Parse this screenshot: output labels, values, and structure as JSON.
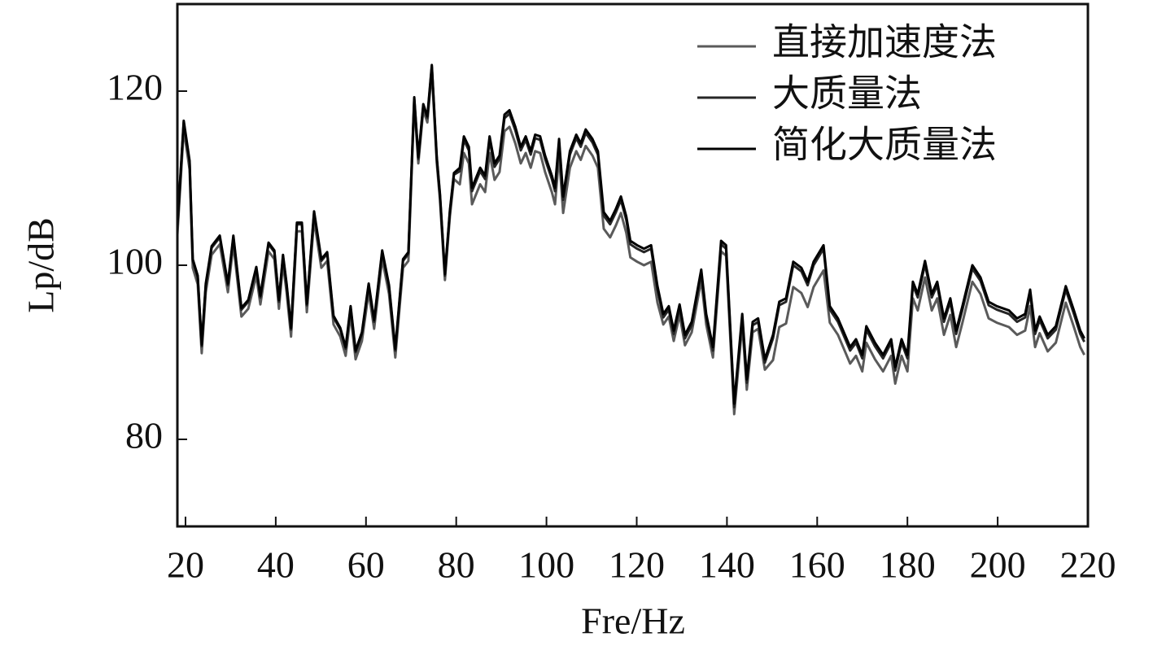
{
  "chart_data": {
    "type": "line",
    "x_label": "Fre/Hz",
    "y_label": "Lp/dB",
    "x": [
      18.2,
      19.6,
      20.9,
      21.6,
      22.7,
      23.6,
      24.5,
      25.8,
      27.6,
      29.4,
      30.6,
      32.4,
      33.9,
      35.7,
      36.6,
      38.4,
      39.7,
      40.7,
      41.6,
      42.4,
      43.4,
      44.7,
      45.8,
      46.9,
      48.5,
      50.1,
      51.4,
      52.8,
      54.3,
      55.5,
      56.6,
      57.7,
      59.1,
      60.6,
      61.8,
      63.6,
      65.1,
      66.5,
      68.2,
      69.4,
      70.7,
      71.6,
      72.7,
      73.6,
      74.6,
      75.7,
      76.4,
      77.5,
      78.6,
      79.5,
      80.8,
      81.7,
      82.8,
      83.5,
      85.3,
      86.4,
      87.4,
      88.5,
      89.6,
      90.7,
      91.8,
      93.1,
      94.3,
      95.4,
      96.5,
      97.5,
      98.6,
      99.7,
      101.2,
      101.9,
      102.8,
      103.7,
      105.2,
      106.6,
      107.6,
      108.7,
      110.2,
      111.4,
      112.7,
      114.1,
      115.4,
      116.5,
      117.7,
      118.6,
      120.1,
      121.6,
      123.2,
      124.6,
      125.9,
      127.1,
      128.2,
      129.5,
      130.7,
      132.2,
      134.3,
      135.4,
      136.9,
      138.7,
      139.8,
      141.6,
      143.4,
      144.4,
      145.7,
      146.9,
      148.4,
      150.2,
      151.6,
      153.1,
      154.7,
      156.5,
      157.9,
      159.2,
      161.4,
      162.8,
      164.6,
      167.3,
      168.6,
      170,
      170.9,
      172.8,
      174.6,
      176.4,
      177.3,
      178.7,
      180,
      181.2,
      182.3,
      183.9,
      185.4,
      186.6,
      188.1,
      189.5,
      190.8,
      192.2,
      194.4,
      196.2,
      198,
      199.8,
      202.5,
      204.3,
      206.1,
      207.2,
      208.3,
      209.3,
      211.1,
      212.9,
      215.1,
      216.9,
      218.3,
      219.2
    ],
    "series": [
      {
        "name": "直接加速度法",
        "color": "#5a5a5a",
        "values": [
          103.5,
          115.6,
          111,
          99.7,
          97.8,
          89.9,
          96.9,
          101.2,
          102.4,
          96.9,
          102.4,
          94.1,
          95,
          98.8,
          95.5,
          101.6,
          100.7,
          95,
          100.2,
          96.9,
          91.8,
          103.9,
          103.9,
          94.6,
          105.2,
          99.7,
          100.5,
          93.2,
          91.8,
          89.6,
          94.3,
          89.2,
          91.3,
          96.9,
          92.7,
          100.7,
          96.7,
          89.4,
          99.7,
          100.5,
          118.6,
          111.7,
          117.8,
          116.4,
          122.3,
          111.7,
          107.5,
          98.3,
          105.6,
          109.9,
          109.3,
          112.9,
          111.7,
          107,
          109.3,
          108.4,
          112.9,
          109.8,
          110.7,
          115.4,
          115.9,
          114,
          111.7,
          112.9,
          111.2,
          113.1,
          112.9,
          110.7,
          108.4,
          107,
          112.6,
          106,
          111.2,
          113.1,
          112.1,
          113.7,
          112.6,
          111.2,
          104.2,
          103.2,
          104.6,
          106,
          103.7,
          100.9,
          100.4,
          100,
          100.4,
          95.7,
          93.2,
          94.1,
          91.3,
          94.3,
          90.8,
          92.3,
          98.3,
          93.2,
          89.4,
          101.6,
          101.1,
          82.9,
          93.2,
          85.7,
          92.3,
          92.7,
          88,
          89.1,
          92.9,
          93.3,
          97.5,
          96.8,
          95.2,
          97.5,
          99.4,
          93.4,
          92,
          88.7,
          89.6,
          87.8,
          91.1,
          89.2,
          87.8,
          89.6,
          86.4,
          89.6,
          87.8,
          96.2,
          94.8,
          98.6,
          94.8,
          96.2,
          92,
          94.3,
          90.6,
          93.4,
          98.1,
          96.7,
          93.9,
          93.4,
          92.9,
          92,
          92.5,
          95.3,
          90.6,
          92.2,
          90.1,
          91.1,
          95.7,
          92.9,
          90.6,
          89.7
        ]
      },
      {
        "name": "大质量法",
        "color": "#262626",
        "values": [
          104.3,
          116.4,
          111.8,
          100.5,
          98.6,
          90.7,
          97.7,
          102,
          103.2,
          97.7,
          103.2,
          94.9,
          95.8,
          99.6,
          96.3,
          102.4,
          101.5,
          95.8,
          101,
          97.7,
          92.6,
          104.7,
          104.7,
          95.4,
          106,
          100.5,
          101.3,
          94,
          92.6,
          90.4,
          95.1,
          90,
          92.1,
          97.7,
          93.5,
          101.5,
          97.5,
          90.2,
          100.5,
          101.3,
          119.1,
          112.2,
          118.3,
          116.9,
          122.8,
          112.2,
          108,
          98.8,
          106.1,
          110.4,
          110.8,
          114.4,
          113.2,
          108.5,
          110.8,
          109.9,
          114.4,
          111.3,
          112.2,
          116.9,
          117.4,
          115.5,
          113.2,
          114.4,
          112.7,
          114.6,
          114.4,
          112.2,
          109.9,
          108.5,
          114.1,
          107.5,
          112.7,
          114.6,
          113.6,
          115.2,
          114.1,
          112.7,
          105.7,
          104.7,
          106.1,
          107.5,
          105.2,
          102.4,
          101.9,
          101.5,
          101.9,
          97.2,
          94,
          94.9,
          92.1,
          95.1,
          91.6,
          93.1,
          99.1,
          94,
          90.2,
          102.4,
          101.9,
          83.7,
          94,
          86.5,
          93.1,
          93.5,
          88.8,
          91.6,
          95.4,
          95.8,
          100,
          99.3,
          97.7,
          100,
          101.9,
          94.9,
          93.5,
          90.2,
          91.1,
          89.3,
          92.6,
          90.7,
          89.3,
          91.1,
          87.9,
          91.1,
          89.3,
          97.7,
          96.3,
          100.1,
          96.3,
          97.7,
          93.5,
          95.8,
          92.1,
          94.9,
          99.6,
          98.2,
          95.4,
          94.9,
          94.4,
          93.5,
          94,
          96.8,
          92.1,
          93.7,
          91.6,
          92.6,
          97.2,
          94.4,
          92.1,
          91.2
        ]
      },
      {
        "name": "简化大质量法",
        "color": "#000000",
        "values": [
          104.5,
          116.6,
          112,
          100.7,
          98.8,
          90.9,
          97.9,
          102.2,
          103.4,
          97.9,
          103.4,
          95.1,
          96,
          99.8,
          96.5,
          102.6,
          101.7,
          96,
          101.2,
          97.9,
          92.8,
          104.9,
          104.9,
          95.6,
          106.2,
          100.7,
          101.5,
          94.2,
          92.8,
          90.6,
          95.3,
          90.2,
          92.3,
          97.9,
          93.7,
          101.7,
          97.7,
          90.4,
          100.7,
          101.5,
          119.3,
          112.4,
          118.5,
          117.1,
          123,
          112.4,
          108.2,
          99,
          106.3,
          110.6,
          111.2,
          114.8,
          113.6,
          108.9,
          111.2,
          110.3,
          114.8,
          111.7,
          112.6,
          117.3,
          117.8,
          115.9,
          113.6,
          114.8,
          113.1,
          115,
          114.8,
          112.6,
          110.3,
          108.9,
          114.5,
          107.9,
          113.1,
          115,
          114,
          115.6,
          114.5,
          113.1,
          106.1,
          105.1,
          106.5,
          107.9,
          105.6,
          102.8,
          102.3,
          101.9,
          102.3,
          97.6,
          94.4,
          95.3,
          92.5,
          95.5,
          92,
          93.5,
          99.5,
          94.4,
          90.6,
          102.8,
          102.3,
          84.1,
          94.4,
          86.9,
          93.5,
          93.9,
          89.2,
          92,
          95.8,
          96.2,
          100.4,
          99.7,
          98.1,
          100.4,
          102.3,
          95.3,
          93.9,
          90.6,
          91.5,
          89.7,
          93,
          91.1,
          89.7,
          91.5,
          88.3,
          91.5,
          89.7,
          98.1,
          96.7,
          100.5,
          96.7,
          98.1,
          93.9,
          96.2,
          92.5,
          95.3,
          100,
          98.6,
          95.8,
          95.3,
          94.8,
          93.9,
          94.4,
          97.2,
          92.5,
          94.1,
          92,
          93,
          97.6,
          94.8,
          92.5,
          91.6
        ]
      }
    ],
    "xlim": [
      18.2,
      220
    ],
    "ylim": [
      70,
      130
    ],
    "xticks": [
      20,
      40,
      60,
      80,
      100,
      120,
      140,
      160,
      180,
      200,
      220
    ],
    "yticks": [
      80,
      100,
      120
    ],
    "grid": false,
    "legend": "upper right"
  }
}
